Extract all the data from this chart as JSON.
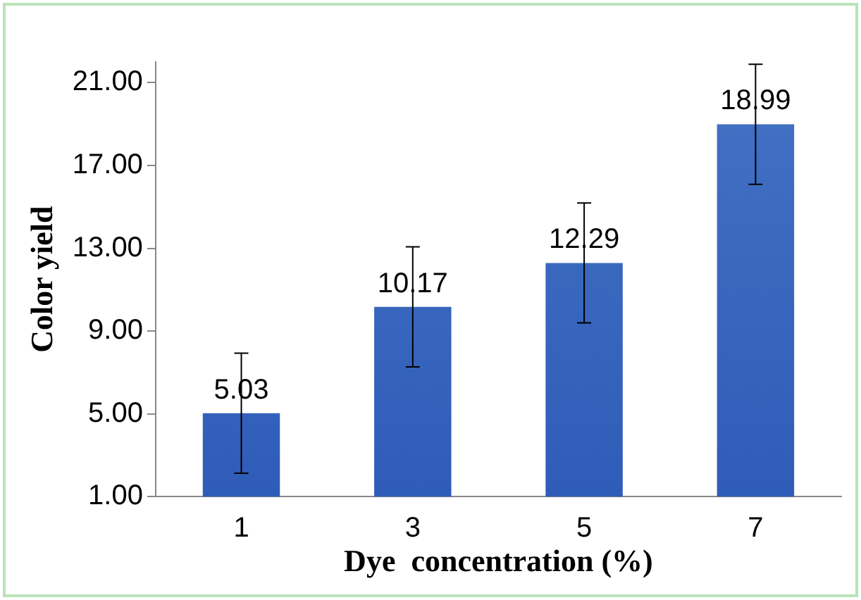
{
  "chart_data": {
    "type": "bar",
    "xlabel": "Dye  concentration (%)",
    "ylabel": "Color yield",
    "categories": [
      "1",
      "3",
      "5",
      "7"
    ],
    "values": [
      5.03,
      10.17,
      12.29,
      18.99
    ],
    "errors": [
      2.9,
      2.9,
      2.9,
      2.9
    ],
    "color": "#4472c4",
    "ylim": [
      1,
      22
    ],
    "yticks": [
      {
        "value": 1,
        "label": "1.00"
      },
      {
        "value": 5,
        "label": "5.00"
      },
      {
        "value": 9,
        "label": "9.00"
      },
      {
        "value": 13,
        "label": "13.00"
      },
      {
        "value": 17,
        "label": "17.00"
      },
      {
        "value": 21,
        "label": "21.00"
      }
    ],
    "grid": false,
    "legend": false,
    "data_labels": true
  }
}
